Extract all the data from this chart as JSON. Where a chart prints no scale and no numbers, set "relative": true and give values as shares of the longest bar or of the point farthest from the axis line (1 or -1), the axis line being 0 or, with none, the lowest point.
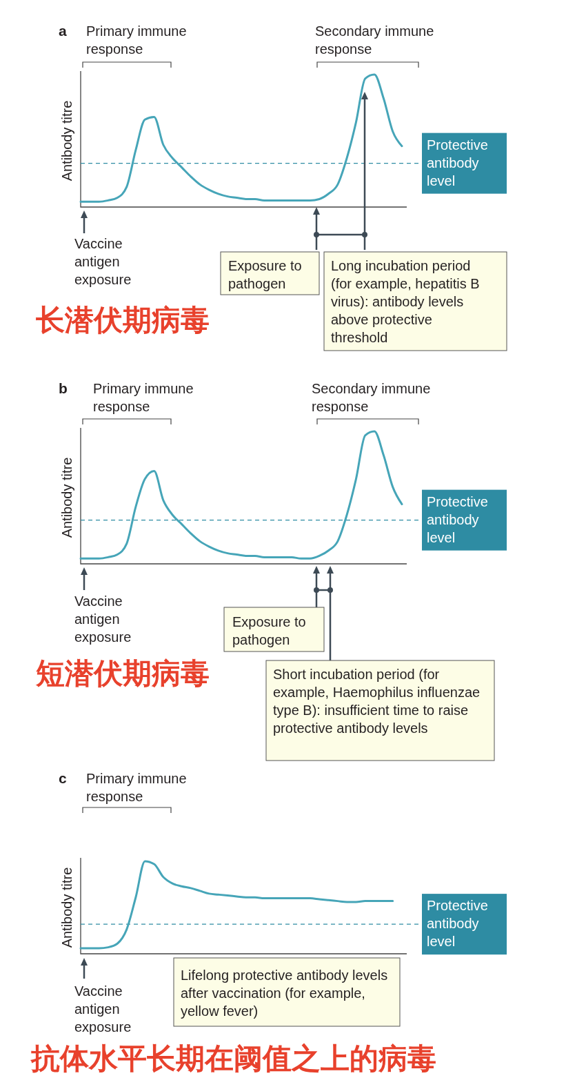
{
  "chart_data": [
    {
      "type": "line",
      "title": "a",
      "ylabel": "Antibody titre",
      "relative": true,
      "categories": [
        null,
        null,
        null,
        null,
        null,
        null,
        null,
        null,
        null,
        null,
        null,
        null,
        null,
        null,
        null,
        null,
        null,
        null,
        null,
        null,
        null,
        null,
        null,
        null,
        null,
        null,
        null,
        null,
        null,
        null,
        null,
        null,
        null,
        null,
        null,
        null
      ],
      "series": [
        {
          "color": "#46a5b8",
          "values": [
            0.04,
            0.04,
            0.04,
            0.05,
            0.07,
            0.15,
            0.43,
            0.66,
            0.68,
            0.47,
            0.37,
            0.3,
            0.23,
            0.17,
            0.13,
            0.1,
            0.08,
            0.07,
            0.06,
            0.06,
            0.05,
            0.05,
            0.05,
            0.05,
            0.05,
            0.05,
            0.06,
            0.1,
            0.17,
            0.37,
            0.64,
            0.97,
            1.0,
            0.82,
            0.57,
            0.46
          ]
        }
      ],
      "ref_lines": [
        {
          "axis": "y",
          "value": 0.33,
          "label": "Protective antibody level",
          "color": "#2e8ca3",
          "line_style": "dashed"
        }
      ],
      "annotations": [
        "Primary immune response",
        "Secondary immune response",
        "Vaccine antigen exposure",
        "Exposure to pathogen",
        "Long incubation period (for example, hepatitis B virus): antibody levels above protective threshold",
        "长潜伏期病毒"
      ]
    },
    {
      "type": "line",
      "title": "b",
      "ylabel": "Antibody titre",
      "relative": true,
      "categories": [
        null,
        null,
        null,
        null,
        null,
        null,
        null,
        null,
        null,
        null,
        null,
        null,
        null,
        null,
        null,
        null,
        null,
        null,
        null,
        null,
        null,
        null,
        null,
        null,
        null,
        null,
        null,
        null,
        null,
        null,
        null,
        null,
        null,
        null,
        null,
        null
      ],
      "series": [
        {
          "color": "#46a5b8",
          "values": [
            0.04,
            0.04,
            0.04,
            0.05,
            0.07,
            0.15,
            0.43,
            0.64,
            0.7,
            0.48,
            0.37,
            0.3,
            0.23,
            0.17,
            0.13,
            0.1,
            0.08,
            0.07,
            0.06,
            0.06,
            0.05,
            0.05,
            0.05,
            0.05,
            0.04,
            0.04,
            0.06,
            0.1,
            0.17,
            0.37,
            0.64,
            0.97,
            1.0,
            0.82,
            0.58,
            0.45
          ]
        }
      ],
      "ref_lines": [
        {
          "axis": "y",
          "value": 0.33,
          "label": "Protective antibody level",
          "color": "#2e8ca3",
          "line_style": "dashed"
        }
      ],
      "annotations": [
        "Primary immune response",
        "Secondary immune response",
        "Vaccine antigen exposure",
        "Exposure to pathogen",
        "Short incubation period (for example, Haemophilus influenzae type B): insufficient time to raise protective antibody levels",
        "短潜伏期病毒"
      ]
    },
    {
      "type": "line",
      "title": "c",
      "ylabel": "Antibody titre",
      "relative": true,
      "categories": [
        null,
        null,
        null,
        null,
        null,
        null,
        null,
        null,
        null,
        null,
        null,
        null,
        null,
        null,
        null,
        null,
        null,
        null,
        null,
        null,
        null,
        null,
        null,
        null,
        null,
        null,
        null,
        null,
        null,
        null,
        null,
        null,
        null,
        null,
        null,
        null
      ],
      "series": [
        {
          "color": "#46a5b8",
          "values": [
            0.06,
            0.06,
            0.06,
            0.07,
            0.11,
            0.26,
            0.61,
            1.0,
            0.97,
            0.83,
            0.76,
            0.73,
            0.71,
            0.68,
            0.65,
            0.64,
            0.63,
            0.62,
            0.61,
            0.61,
            0.6,
            0.6,
            0.6,
            0.6,
            0.6,
            0.6,
            0.59,
            0.58,
            0.57,
            0.56,
            0.56,
            0.57,
            0.57,
            0.57,
            0.57,
            null
          ]
        }
      ],
      "ref_lines": [
        {
          "axis": "y",
          "value": 0.32,
          "label": "Protective antibody level",
          "color": "#2e8ca3",
          "line_style": "dashed"
        }
      ],
      "annotations": [
        "Primary immune response",
        "Vaccine antigen exposure",
        "Lifelong protective antibody levels after vaccination (for example, yellow fever)",
        "抗体水平长期在阈值之上的病毒"
      ]
    }
  ]
}
